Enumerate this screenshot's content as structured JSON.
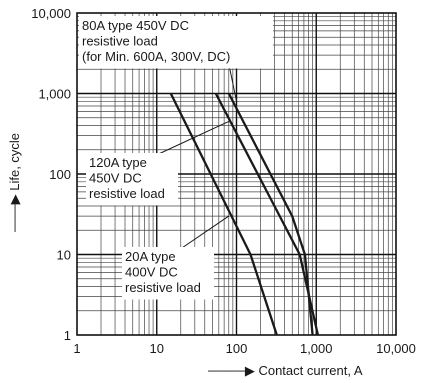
{
  "chart_data": {
    "type": "line",
    "xscale": "log",
    "yscale": "log",
    "xlim": [
      1,
      10000
    ],
    "ylim": [
      1,
      10000
    ],
    "grid": true,
    "xlabel": "Contact current, A",
    "ylabel": "Life, cycle",
    "xticks": [
      {
        "value": 1,
        "label": "1"
      },
      {
        "value": 10,
        "label": "10"
      },
      {
        "value": 100,
        "label": "100"
      },
      {
        "value": 1000,
        "label": "1,000"
      },
      {
        "value": 10000,
        "label": "10,000"
      }
    ],
    "yticks": [
      {
        "value": 1,
        "label": "1"
      },
      {
        "value": 10,
        "label": "10"
      },
      {
        "value": 100,
        "label": "100"
      },
      {
        "value": 1000,
        "label": "1,000"
      },
      {
        "value": 10000,
        "label": "10,000"
      }
    ],
    "series": [
      {
        "id": "s80",
        "points": [
          [
            55,
            1000
          ],
          [
            620,
            10
          ],
          [
            1050,
            1
          ]
        ]
      },
      {
        "id": "s120",
        "points": [
          [
            80,
            1000
          ],
          [
            500,
            30
          ],
          [
            720,
            10
          ],
          [
            900,
            1
          ]
        ]
      },
      {
        "id": "s20",
        "points": [
          [
            15,
            1000
          ],
          [
            150,
            10
          ],
          [
            320,
            1
          ]
        ]
      }
    ],
    "annotations": [
      {
        "id": "a80",
        "lines": [
          "80A type 450V DC",
          "resistive  load",
          "(for Min. 600A, 300V, DC)"
        ],
        "target": [
          100,
          800
        ]
      },
      {
        "id": "a120",
        "lines": [
          "120A type",
          "450V DC",
          "resistive load"
        ],
        "target": [
          80,
          450
        ]
      },
      {
        "id": "a20",
        "lines": [
          "20A type",
          "400V DC",
          "resistive load"
        ],
        "target": [
          80,
          30
        ]
      }
    ]
  }
}
